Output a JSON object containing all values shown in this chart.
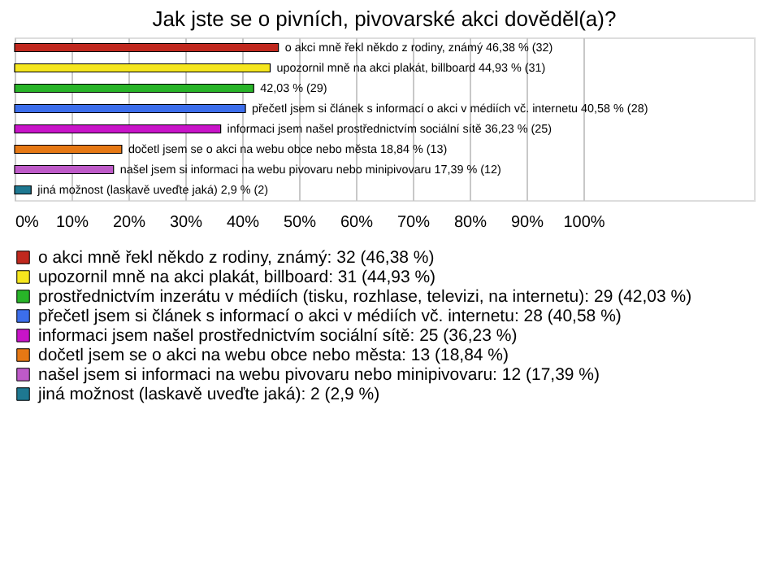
{
  "chart_data": {
    "type": "bar",
    "orientation": "horizontal",
    "title": "Jak jste se o pivních, pivovarské akci dověděl(a)?",
    "categories": [
      null,
      null,
      null,
      null,
      null,
      null,
      null,
      null
    ],
    "series": [
      {
        "name": "o akci mně řekl někdo z rodiny, známý: 32 (46,38 %)",
        "color": "#c0281e",
        "values": [
          46.38,
          null,
          null,
          null,
          null,
          null,
          null,
          null
        ],
        "value_labels": [
          "o akci mně řekl někdo z rodiny, známý 46,38 % (32)",
          null,
          null,
          null,
          null,
          null,
          null,
          null
        ]
      },
      {
        "name": "upozornil mně na akci plakát, billboard: 31 (44,93 %)",
        "color": "#f5e61e",
        "values": [
          null,
          44.93,
          null,
          null,
          null,
          null,
          null,
          null
        ],
        "value_labels": [
          null,
          "upozornil mně na akci plakát, billboard 44,93 % (31)",
          null,
          null,
          null,
          null,
          null,
          null
        ]
      },
      {
        "name": "prostřednictvím inzerátu v médiích (tisku, rozhlase, televizi, na internetu): 29 (42,03 %)",
        "color": "#28b428",
        "values": [
          null,
          null,
          42.03,
          null,
          null,
          null,
          null,
          null
        ],
        "value_labels": [
          null,
          null,
          "42,03 % (29)",
          null,
          null,
          null,
          null,
          null
        ]
      },
      {
        "name": "přečetl jsem si článek s informací o akci v médiích vč. internetu: 28 (40,58 %)",
        "color": "#3c6eeb",
        "values": [
          null,
          null,
          null,
          40.58,
          null,
          null,
          null,
          null
        ],
        "value_labels": [
          null,
          null,
          null,
          "přečetl jsem si článek s informací o akci v médiích vč. internetu 40,58 % (28)",
          null,
          null,
          null,
          null
        ]
      },
      {
        "name": "informaci jsem našel prostřednictvím sociální sítě: 25 (36,23 %)",
        "color": "#c814c8",
        "values": [
          null,
          null,
          null,
          null,
          36.23,
          null,
          null,
          null
        ],
        "value_labels": [
          null,
          null,
          null,
          null,
          "informaci jsem našel prostřednictvím sociální sítě 36,23 % (25)",
          null,
          null,
          null
        ]
      },
      {
        "name": "dočetl jsem se o akci na webu obce nebo města: 13 (18,84 %)",
        "color": "#e67814",
        "values": [
          null,
          null,
          null,
          null,
          null,
          18.84,
          null,
          null
        ],
        "value_labels": [
          null,
          null,
          null,
          null,
          null,
          "dočetl jsem se o akci na webu obce nebo města 18,84 % (13)",
          null,
          null
        ]
      },
      {
        "name": "našel jsem si informaci na webu pivovaru nebo minipivovaru: 12 (17,39 %)",
        "color": "#be5ac8",
        "values": [
          null,
          null,
          null,
          null,
          null,
          null,
          17.39,
          null
        ],
        "value_labels": [
          null,
          null,
          null,
          null,
          null,
          null,
          "našel jsem si informaci na webu pivovaru nebo minipivovaru 17,39 % (12)",
          null
        ]
      },
      {
        "name": "jiná možnost (laskavě uveďte jaká): 2 (2,9 %)",
        "color": "#1e7891",
        "values": [
          null,
          null,
          null,
          null,
          null,
          null,
          null,
          2.9
        ],
        "value_labels": [
          null,
          null,
          null,
          null,
          null,
          null,
          null,
          "jiná možnost (laskavě uveďte jaká) 2,9 % (2)"
        ]
      }
    ],
    "xlim": [
      0,
      130
    ],
    "xticks": [
      {
        "value": 0,
        "label": "0%"
      },
      {
        "value": 10,
        "label": "10%"
      },
      {
        "value": 20,
        "label": "20%"
      },
      {
        "value": 30,
        "label": "30%"
      },
      {
        "value": 40,
        "label": "40%"
      },
      {
        "value": 50,
        "label": "50%"
      },
      {
        "value": 60,
        "label": "60%"
      },
      {
        "value": 70,
        "label": "70%"
      },
      {
        "value": 80,
        "label": "80%"
      },
      {
        "value": 90,
        "label": "90%"
      },
      {
        "value": 100,
        "label": "100%"
      }
    ],
    "grid": "x",
    "legend": "bottom",
    "tick_labels": "x"
  }
}
